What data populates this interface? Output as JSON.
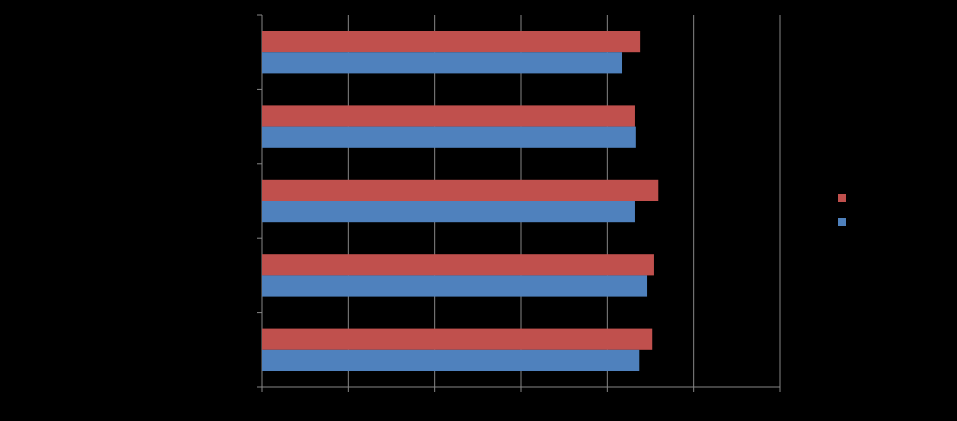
{
  "chart_data": {
    "type": "bar",
    "orientation": "horizontal",
    "categories": [
      null,
      null,
      null,
      null,
      null
    ],
    "series": [
      {
        "color": "#c0504d",
        "values": [
          4.38,
          4.32,
          4.59,
          4.54,
          4.52
        ]
      },
      {
        "color": "#4f81bd",
        "values": [
          4.17,
          4.33,
          4.32,
          4.46,
          4.37
        ]
      }
    ],
    "xlim": [
      0,
      6
    ],
    "xticks": [
      0,
      1,
      2,
      3,
      4,
      5,
      6
    ],
    "grid": true,
    "legend": "right"
  }
}
